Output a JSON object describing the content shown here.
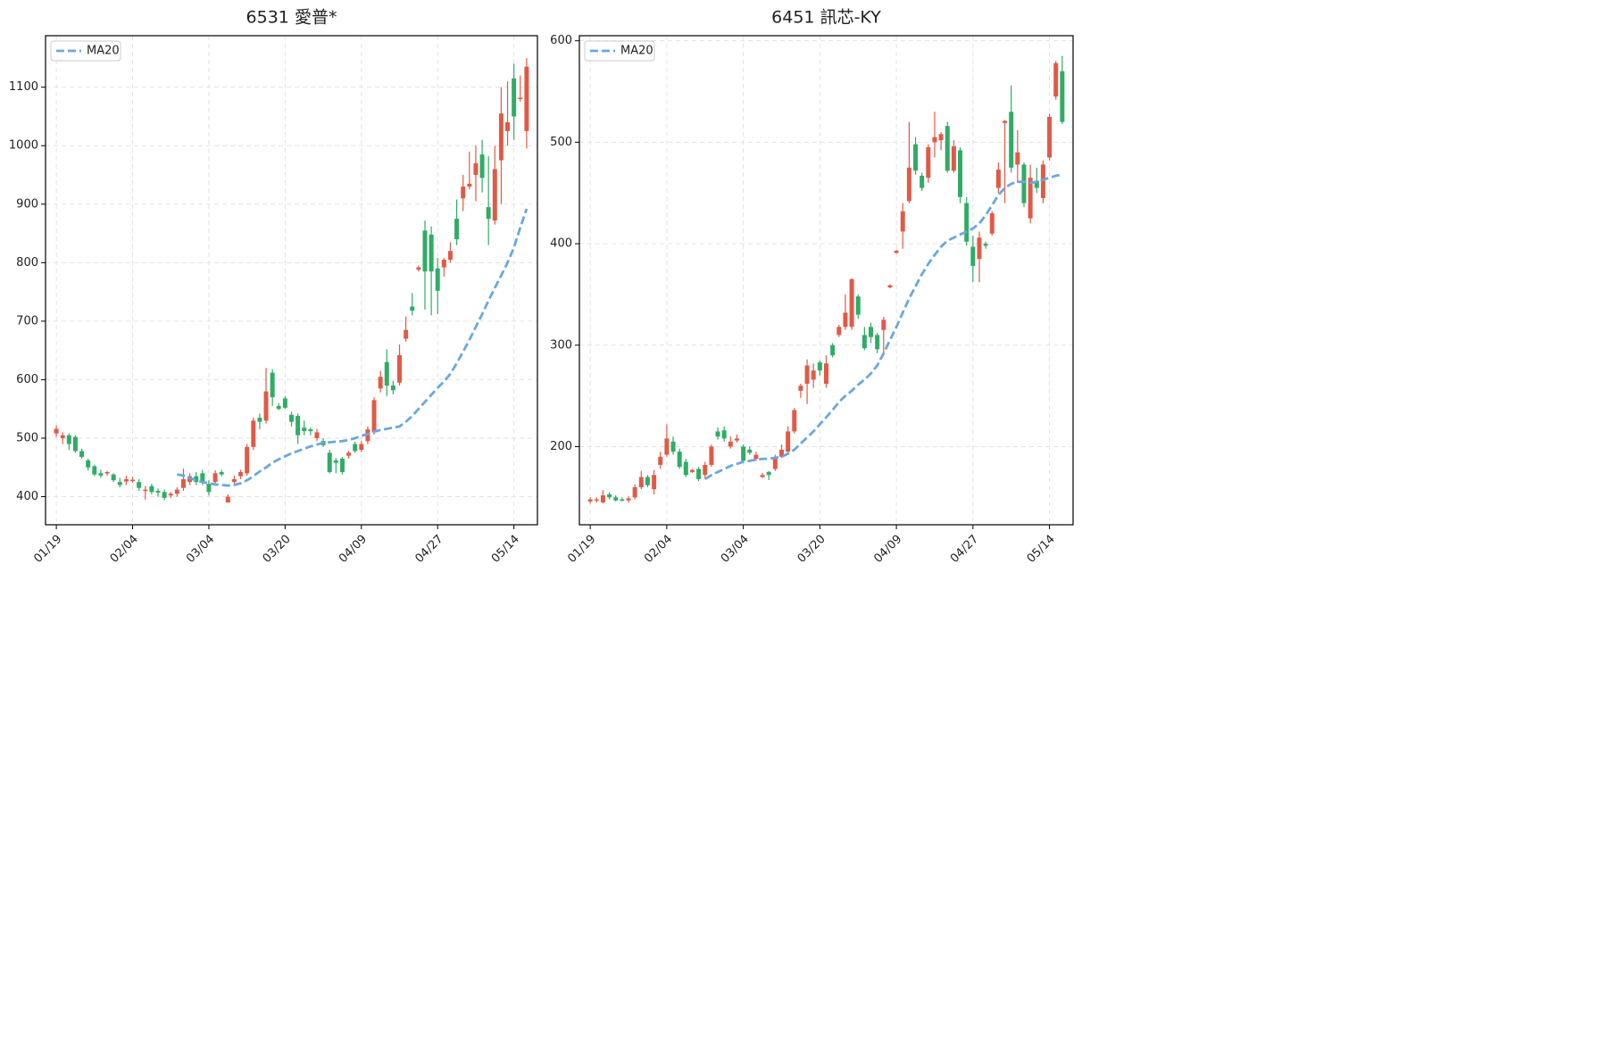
{
  "chart_data": [
    {
      "type": "candlestick",
      "title": "6531 愛普*",
      "categories": [
        "01/19",
        null,
        null,
        null,
        null,
        null,
        null,
        null,
        null,
        null,
        null,
        null,
        "02/04",
        null,
        null,
        null,
        null,
        null,
        null,
        null,
        null,
        null,
        null,
        null,
        "03/04",
        null,
        null,
        null,
        null,
        null,
        null,
        null,
        null,
        null,
        null,
        null,
        "03/20",
        null,
        null,
        null,
        null,
        null,
        null,
        null,
        null,
        null,
        null,
        null,
        "04/09",
        null,
        null,
        null,
        null,
        null,
        null,
        null,
        null,
        null,
        null,
        null,
        "04/27",
        null,
        null,
        null,
        null,
        null,
        null,
        null,
        null,
        null,
        null,
        null,
        "05/14",
        null,
        null
      ],
      "open": [
        508,
        500,
        505,
        502,
        478,
        462,
        452,
        440,
        440,
        438,
        425,
        426,
        427,
        425,
        410,
        418,
        410,
        408,
        402,
        405,
        415,
        425,
        435,
        440,
        422,
        425,
        442,
        390,
        425,
        435,
        440,
        485,
        535,
        530,
        612,
        555,
        568,
        540,
        538,
        518,
        515,
        500,
        495,
        475,
        462,
        465,
        470,
        490,
        480,
        495,
        510,
        585,
        630,
        590,
        595,
        670,
        725,
        788,
        855,
        848,
        790,
        792,
        805,
        875,
        910,
        930,
        950,
        985,
        895,
        872,
        975,
        1025,
        1115,
        1080,
        1025
      ],
      "high": [
        522,
        510,
        508,
        505,
        482,
        465,
        455,
        446,
        444,
        440,
        432,
        436,
        434,
        430,
        418,
        422,
        414,
        412,
        408,
        416,
        448,
        440,
        442,
        446,
        428,
        445,
        446,
        404,
        436,
        446,
        490,
        535,
        542,
        620,
        618,
        560,
        572,
        545,
        542,
        530,
        518,
        516,
        500,
        480,
        466,
        468,
        478,
        494,
        495,
        520,
        570,
        615,
        652,
        598,
        660,
        708,
        748,
        795,
        872,
        862,
        808,
        808,
        835,
        908,
        950,
        990,
        1000,
        1010,
        982,
        1000,
        1100,
        1110,
        1140,
        1120,
        1150
      ],
      "low": [
        502,
        490,
        480,
        475,
        465,
        445,
        435,
        432,
        436,
        425,
        416,
        420,
        424,
        410,
        395,
        404,
        400,
        394,
        398,
        400,
        410,
        420,
        420,
        420,
        402,
        420,
        435,
        390,
        420,
        430,
        436,
        480,
        515,
        525,
        555,
        548,
        550,
        520,
        490,
        505,
        505,
        495,
        485,
        440,
        440,
        438,
        465,
        475,
        476,
        490,
        506,
        578,
        572,
        575,
        590,
        665,
        710,
        785,
        720,
        710,
        712,
        776,
        800,
        830,
        888,
        925,
        905,
        920,
        830,
        865,
        900,
        1000,
        1010,
        1075,
        995
      ],
      "close": [
        516,
        505,
        490,
        478,
        468,
        450,
        438,
        436,
        442,
        428,
        420,
        430,
        429,
        415,
        412,
        408,
        407,
        398,
        405,
        412,
        430,
        435,
        425,
        425,
        408,
        440,
        438,
        400,
        430,
        442,
        485,
        530,
        528,
        580,
        570,
        550,
        552,
        528,
        505,
        512,
        512,
        510,
        488,
        442,
        458,
        442,
        475,
        478,
        490,
        515,
        565,
        605,
        590,
        582,
        642,
        685,
        718,
        792,
        785,
        785,
        752,
        805,
        820,
        840,
        930,
        935,
        970,
        945,
        875,
        960,
        1055,
        1040,
        1050,
        1082,
        1135
      ],
      "series": [
        {
          "name": "MA20",
          "color": "#6aa8dc",
          "values": [
            null,
            null,
            null,
            null,
            null,
            null,
            null,
            null,
            null,
            null,
            null,
            null,
            null,
            null,
            null,
            null,
            null,
            null,
            null,
            438,
            436,
            432,
            428,
            425,
            423,
            421,
            420,
            419,
            420,
            423,
            428,
            435,
            443,
            450,
            458,
            464,
            469,
            474,
            478,
            482,
            486,
            489,
            492,
            493,
            494,
            495,
            497,
            500,
            504,
            507,
            511,
            514,
            516,
            518,
            520,
            528,
            538,
            550,
            562,
            574,
            586,
            597,
            610,
            628,
            648,
            668,
            690,
            712,
            735,
            757,
            778,
            800,
            826,
            860,
            892
          ]
        }
      ],
      "up_color": "#e05a47",
      "down_color": "#2fac66",
      "ylim": [
        352,
        1188
      ],
      "yticks": [
        400,
        500,
        600,
        700,
        800,
        900,
        1000,
        1100
      ],
      "grid": true,
      "legend": "upper left"
    },
    {
      "type": "candlestick",
      "title": "6451 訊芯-KY",
      "categories": [
        "01/19",
        null,
        null,
        null,
        null,
        null,
        null,
        null,
        null,
        null,
        null,
        null,
        "02/04",
        null,
        null,
        null,
        null,
        null,
        null,
        null,
        null,
        null,
        null,
        null,
        "03/04",
        null,
        null,
        null,
        null,
        null,
        null,
        null,
        null,
        null,
        null,
        null,
        "03/20",
        null,
        null,
        null,
        null,
        null,
        null,
        null,
        null,
        null,
        null,
        null,
        "04/09",
        null,
        null,
        null,
        null,
        null,
        null,
        null,
        null,
        null,
        null,
        null,
        "04/27",
        null,
        null,
        null,
        null,
        null,
        null,
        null,
        null,
        null,
        null,
        null,
        "05/14",
        null,
        null
      ],
      "open": [
        146,
        147,
        145,
        153,
        150,
        148,
        147,
        150,
        160,
        170,
        158,
        182,
        192,
        205,
        195,
        185,
        175,
        178,
        172,
        182,
        215,
        216,
        200,
        206,
        200,
        197,
        188,
        170,
        175,
        178,
        190,
        195,
        215,
        255,
        262,
        266,
        283,
        262,
        300,
        310,
        318,
        318,
        348,
        310,
        318,
        310,
        315,
        357,
        391,
        412,
        442,
        498,
        467,
        465,
        500,
        502,
        516,
        472,
        492,
        440,
        397,
        385,
        400,
        410,
        455,
        519,
        530,
        478,
        478,
        425,
        462,
        445,
        485,
        545,
        570
      ],
      "high": [
        150,
        150,
        157,
        155,
        152,
        150,
        151,
        163,
        176,
        172,
        177,
        195,
        222,
        210,
        198,
        188,
        178,
        180,
        185,
        202,
        219,
        220,
        210,
        212,
        202,
        200,
        195,
        174,
        176,
        192,
        202,
        220,
        238,
        262,
        286,
        282,
        285,
        290,
        302,
        320,
        350,
        366,
        350,
        318,
        322,
        312,
        328,
        360,
        394,
        440,
        520,
        505,
        470,
        498,
        530,
        510,
        520,
        502,
        495,
        446,
        408,
        412,
        402,
        432,
        480,
        522,
        556,
        512,
        480,
        478,
        475,
        482,
        528,
        580,
        585
      ],
      "low": [
        144,
        145,
        144,
        148,
        146,
        146,
        145,
        148,
        158,
        160,
        153,
        178,
        190,
        192,
        178,
        170,
        174,
        166,
        168,
        180,
        207,
        205,
        198,
        204,
        186,
        192,
        186,
        169,
        167,
        176,
        189,
        193,
        213,
        248,
        242,
        258,
        270,
        258,
        288,
        308,
        315,
        315,
        326,
        295,
        302,
        292,
        290,
        356,
        390,
        395,
        440,
        468,
        452,
        460,
        485,
        492,
        470,
        470,
        440,
        398,
        362,
        362,
        395,
        408,
        450,
        440,
        470,
        460,
        436,
        420,
        450,
        440,
        482,
        542,
        518
      ],
      "close": [
        148,
        148,
        152,
        150,
        147,
        147,
        149,
        160,
        170,
        162,
        172,
        190,
        208,
        195,
        180,
        172,
        177,
        168,
        182,
        200,
        210,
        208,
        205,
        208,
        186,
        194,
        192,
        172,
        172,
        190,
        197,
        215,
        236,
        260,
        280,
        275,
        275,
        282,
        290,
        318,
        332,
        365,
        330,
        297,
        308,
        296,
        325,
        359,
        393,
        432,
        475,
        472,
        455,
        495,
        505,
        508,
        472,
        496,
        446,
        402,
        378,
        406,
        398,
        430,
        473,
        521,
        475,
        490,
        440,
        465,
        455,
        478,
        525,
        578,
        520
      ],
      "series": [
        {
          "name": "MA20",
          "color": "#6aa8dc",
          "values": [
            null,
            null,
            null,
            null,
            null,
            null,
            null,
            null,
            null,
            null,
            null,
            null,
            null,
            null,
            null,
            null,
            null,
            null,
            168,
            172,
            175,
            178,
            181,
            183,
            185,
            186,
            187,
            188,
            188,
            189,
            190,
            193,
            197,
            203,
            209,
            215,
            222,
            229,
            236,
            244,
            250,
            255,
            261,
            266,
            272,
            280,
            292,
            305,
            318,
            332,
            346,
            358,
            370,
            380,
            389,
            397,
            403,
            406,
            409,
            412,
            415,
            420,
            428,
            438,
            448,
            455,
            459,
            461,
            461,
            460,
            461,
            463,
            465,
            467,
            468
          ]
        }
      ],
      "up_color": "#e05a47",
      "down_color": "#2fac66",
      "ylim": [
        123,
        605
      ],
      "yticks": [
        200,
        300,
        400,
        500,
        600
      ],
      "grid": true,
      "legend": "upper left"
    }
  ]
}
